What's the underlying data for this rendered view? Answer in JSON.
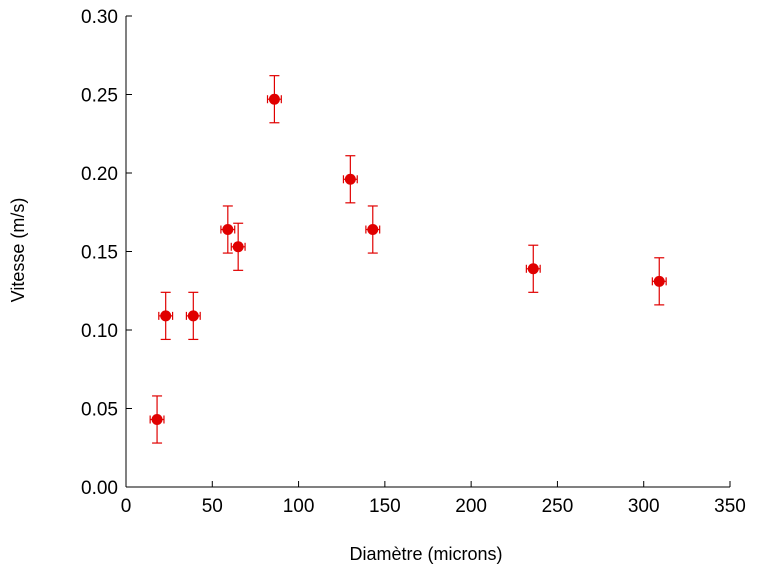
{
  "chart_data": {
    "type": "scatter",
    "title": "",
    "xlabel": "Diamètre (microns)",
    "ylabel": "Vitesse (m/s)",
    "xlim": [
      0,
      350
    ],
    "ylim": [
      0,
      0.3
    ],
    "x_ticks": [
      0,
      50,
      100,
      150,
      200,
      250,
      300,
      350
    ],
    "x_tick_labels": [
      "0",
      "50",
      "100",
      "150",
      "200",
      "250",
      "300",
      "350"
    ],
    "y_ticks": [
      0,
      0.05,
      0.1,
      0.15,
      0.2,
      0.25,
      0.3
    ],
    "y_tick_labels": [
      "0.00",
      "0.05",
      "0.10",
      "0.15",
      "0.20",
      "0.25",
      "0.30"
    ],
    "grid": false,
    "legend": "none",
    "marker_color": "#e00000",
    "series": [
      {
        "points": [
          {
            "x": 18,
            "y": 0.043,
            "xerr": 4,
            "yerr": 0.015
          },
          {
            "x": 23,
            "y": 0.109,
            "xerr": 4,
            "yerr": 0.015
          },
          {
            "x": 39,
            "y": 0.109,
            "xerr": 4,
            "yerr": 0.015
          },
          {
            "x": 59,
            "y": 0.164,
            "xerr": 4,
            "yerr": 0.015
          },
          {
            "x": 65,
            "y": 0.153,
            "xerr": 4,
            "yerr": 0.015
          },
          {
            "x": 86,
            "y": 0.247,
            "xerr": 4,
            "yerr": 0.015
          },
          {
            "x": 130,
            "y": 0.196,
            "xerr": 4,
            "yerr": 0.015
          },
          {
            "x": 143,
            "y": 0.164,
            "xerr": 4,
            "yerr": 0.015
          },
          {
            "x": 236,
            "y": 0.139,
            "xerr": 4,
            "yerr": 0.015
          },
          {
            "x": 309,
            "y": 0.131,
            "xerr": 4,
            "yerr": 0.015
          }
        ]
      }
    ]
  }
}
